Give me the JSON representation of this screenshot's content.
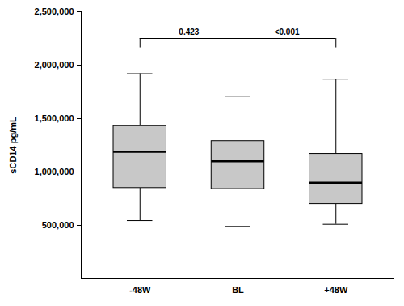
{
  "chart_data": {
    "type": "box",
    "y_label": "sCD14 pg/mL",
    "categories": [
      "-48W",
      "BL",
      "+48W"
    ],
    "whisker_low": [
      545000,
      490000,
      510000
    ],
    "q1": [
      850000,
      840000,
      700000
    ],
    "median": [
      1190000,
      1100000,
      900000
    ],
    "q3": [
      1430000,
      1290000,
      1170000
    ],
    "whisker_high": [
      1920000,
      1710000,
      1870000
    ],
    "color": "#c8c8c8",
    "ylim": [
      0,
      2500000
    ],
    "yticks": [
      {
        "value": 500000,
        "label": "500,000"
      },
      {
        "value": 1000000,
        "label": "1,000,000"
      },
      {
        "value": 1500000,
        "label": "1,500,000"
      },
      {
        "value": 2000000,
        "label": "2,000,000"
      },
      {
        "value": 2500000,
        "label": "2,500,000"
      }
    ],
    "comparisons": [
      {
        "from": "-48W",
        "to": "BL",
        "label": "0.423",
        "y": 2250000
      },
      {
        "from": "BL",
        "to": "+48W",
        "label": "<0.001",
        "y": 2250000
      }
    ]
  }
}
